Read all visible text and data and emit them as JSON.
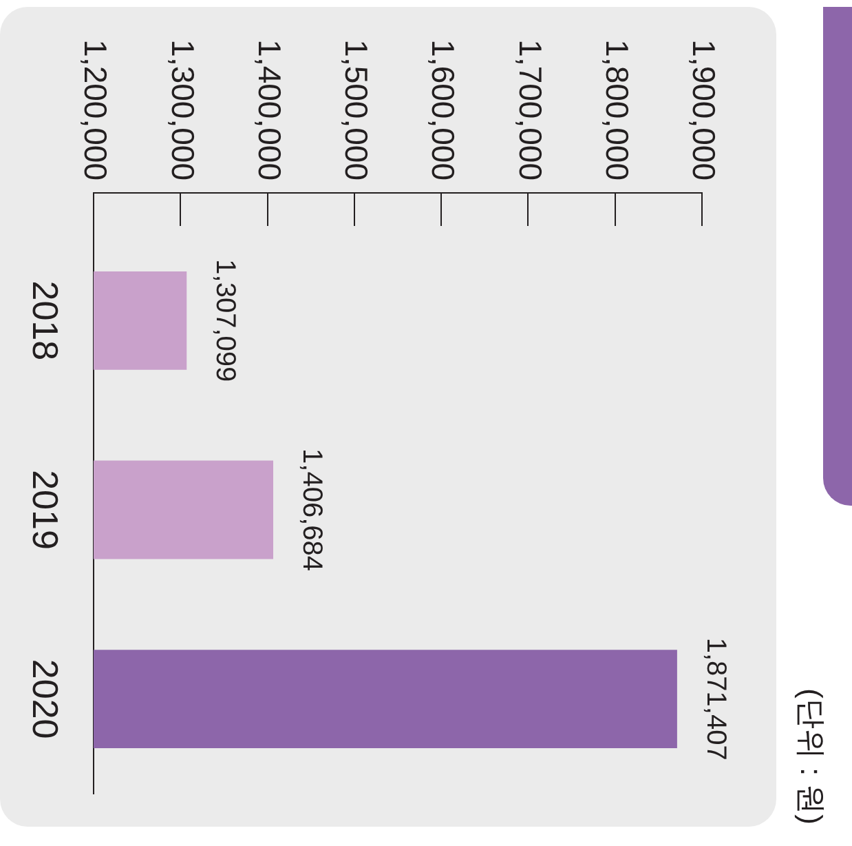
{
  "chart_data": {
    "type": "bar",
    "orientation": "horizontal",
    "categories": [
      "2018",
      "2019",
      "2020"
    ],
    "values": [
      1307099,
      1406684,
      1871407
    ],
    "colors": [
      "#c9a1cb",
      "#c9a1cb",
      "#8d66aa"
    ],
    "xlim": [
      1200000,
      1900000
    ],
    "xticks": [
      {
        "value": 1200000,
        "label": "1,200,000"
      },
      {
        "value": 1300000,
        "label": "1,300,000"
      },
      {
        "value": 1400000,
        "label": "1,400,000"
      },
      {
        "value": 1500000,
        "label": "1,500,000"
      },
      {
        "value": 1600000,
        "label": "1,600,000"
      },
      {
        "value": 1700000,
        "label": "1,700,000"
      },
      {
        "value": 1800000,
        "label": "1,800,000"
      },
      {
        "value": 1900000,
        "label": "1,900,000"
      }
    ],
    "value_labels": [
      "1,307,099",
      "1,406,684",
      "1,871,407"
    ],
    "annotations": [
      "(단위 : 원)"
    ]
  }
}
